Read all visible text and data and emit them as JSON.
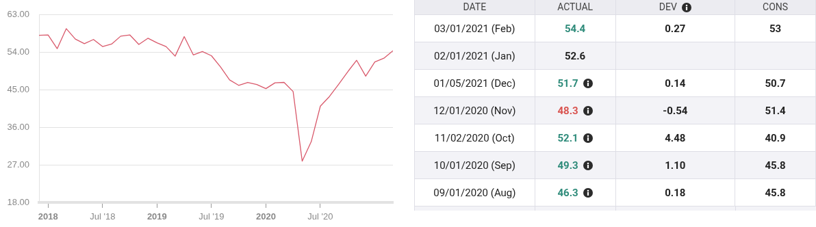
{
  "chart_data": [
    {
      "type": "line",
      "x": [
        "2017-12",
        "2018-01",
        "2018-02",
        "2018-03",
        "2018-04",
        "2018-05",
        "2018-06",
        "2018-07",
        "2018-08",
        "2018-09",
        "2018-10",
        "2018-11",
        "2018-12",
        "2019-01",
        "2019-02",
        "2019-03",
        "2019-04",
        "2019-05",
        "2019-06",
        "2019-07",
        "2019-08",
        "2019-09",
        "2019-10",
        "2019-11",
        "2019-12",
        "2020-01",
        "2020-02",
        "2020-03",
        "2020-04",
        "2020-05",
        "2020-06",
        "2020-07",
        "2020-08",
        "2020-09",
        "2020-10",
        "2020-11",
        "2020-12",
        "2021-01",
        "2021-02",
        "2021-03"
      ],
      "series": [
        {
          "color": "#d9596b",
          "values": [
            58.1,
            58.2,
            54.9,
            59.7,
            57.2,
            56.1,
            57.1,
            55.4,
            56.0,
            57.9,
            58.2,
            55.9,
            57.4,
            56.3,
            55.4,
            53.1,
            57.8,
            53.4,
            54.2,
            53.2,
            50.5,
            47.4,
            46.1,
            46.8,
            46.3,
            45.3,
            46.7,
            46.8,
            44.6,
            27.9,
            32.6,
            41.1,
            43.4,
            46.3,
            49.3,
            52.1,
            48.3,
            51.7,
            52.6,
            54.4
          ]
        }
      ],
      "xlim": [
        "2017-12",
        "2021-03"
      ],
      "xticks": [
        {
          "value": "2018-01",
          "label": "2018"
        },
        {
          "value": "2018-07",
          "label": "Jul '18"
        },
        {
          "value": "2019-01",
          "label": "2019"
        },
        {
          "value": "2019-07",
          "label": "Jul '19"
        },
        {
          "value": "2020-01",
          "label": "2020"
        },
        {
          "value": "2020-07",
          "label": "Jul '20"
        }
      ],
      "ylim": [
        18,
        63
      ],
      "yticks": [
        {
          "value": 18,
          "label": "18.00"
        },
        {
          "value": 27,
          "label": "27.00"
        },
        {
          "value": 36,
          "label": "36.00"
        },
        {
          "value": 45,
          "label": "45.00"
        },
        {
          "value": 54,
          "label": "54.00"
        },
        {
          "value": 63,
          "label": "63.00"
        }
      ],
      "grid": "y",
      "legend": false,
      "marker": "none",
      "line_style": "solid"
    },
    {
      "type": "other",
      "categories": [
        "DATE",
        "ACTUAL",
        "DEV",
        "CONS"
      ],
      "cell_labels": [
        [
          "03/01/2021 (Feb)",
          "54.4",
          "0.27",
          "53"
        ],
        [
          "02/01/2021 (Jan)",
          "52.6",
          null,
          null
        ],
        [
          "01/05/2021 (Dec)",
          "51.7",
          "0.14",
          "50.7"
        ],
        [
          "12/01/2020 (Nov)",
          "48.3",
          "-0.54",
          "51.4"
        ],
        [
          "11/02/2020 (Oct)",
          "52.1",
          "4.48",
          "40.9"
        ],
        [
          "10/01/2020 (Sep)",
          "49.3",
          "1.10",
          "45.8"
        ],
        [
          "09/01/2020 (Aug)",
          "46.3",
          "0.18",
          "45.8"
        ]
      ]
    }
  ]
}
